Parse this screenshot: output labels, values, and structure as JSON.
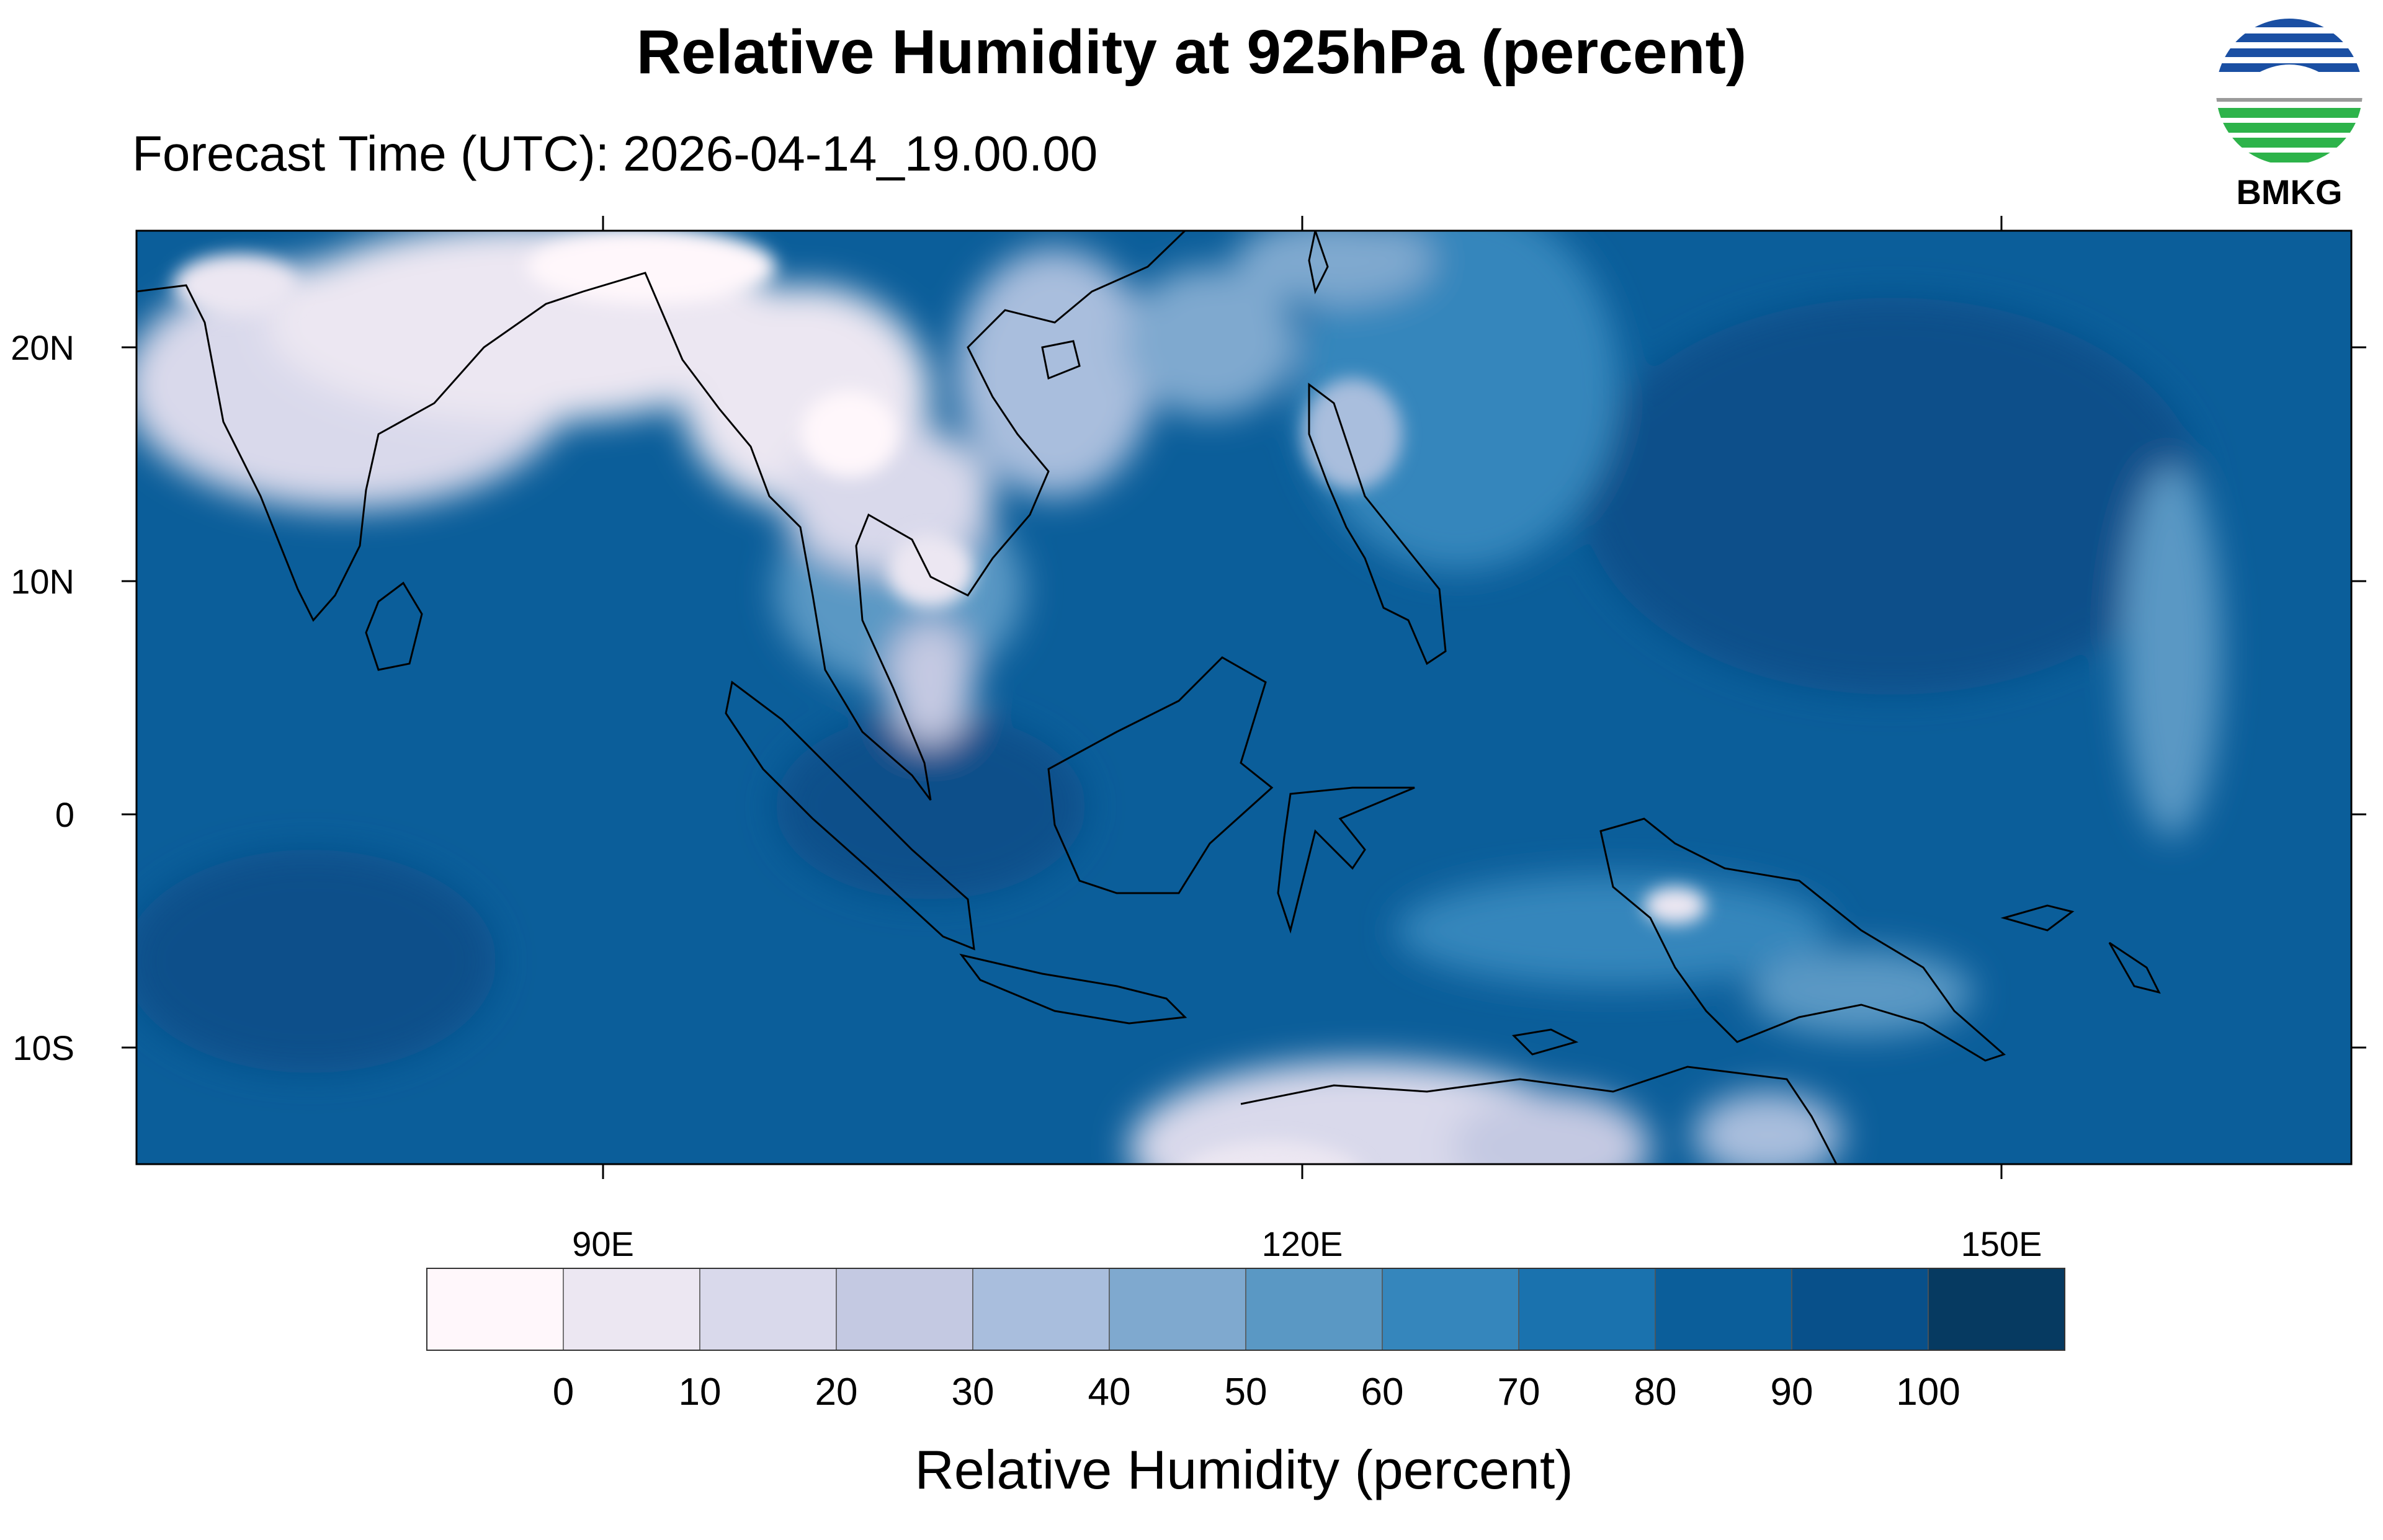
{
  "title": "Relative Humidity at 925hPa (percent)",
  "forecast_label": "Forecast Time (UTC): 2026-04-14_19.00.00",
  "logo": {
    "text": "BMKG",
    "icon": "bmkg-logo",
    "colors": [
      "#1a4fa3",
      "#2db34a"
    ]
  },
  "map": {
    "lat_ticks": [
      "20N",
      "10N",
      "0",
      "10S"
    ],
    "lon_ticks": [
      "90E",
      "120E",
      "150E"
    ],
    "lon_range": [
      70,
      165
    ],
    "lat_range": [
      -15,
      25
    ]
  },
  "colorbar": {
    "title": "Relative Humidity (percent)",
    "tick_labels": [
      "0",
      "10",
      "20",
      "30",
      "40",
      "50",
      "60",
      "70",
      "80",
      "90",
      "100"
    ],
    "colors": [
      "#fff7fb",
      "#ece7f2",
      "#d9d9eb",
      "#c4c9e2",
      "#a9bedd",
      "#7fa9cf",
      "#5a98c4",
      "#3586bc",
      "#1a72ae",
      "#0b5e9a",
      "#08508a",
      "#063a61"
    ]
  }
}
